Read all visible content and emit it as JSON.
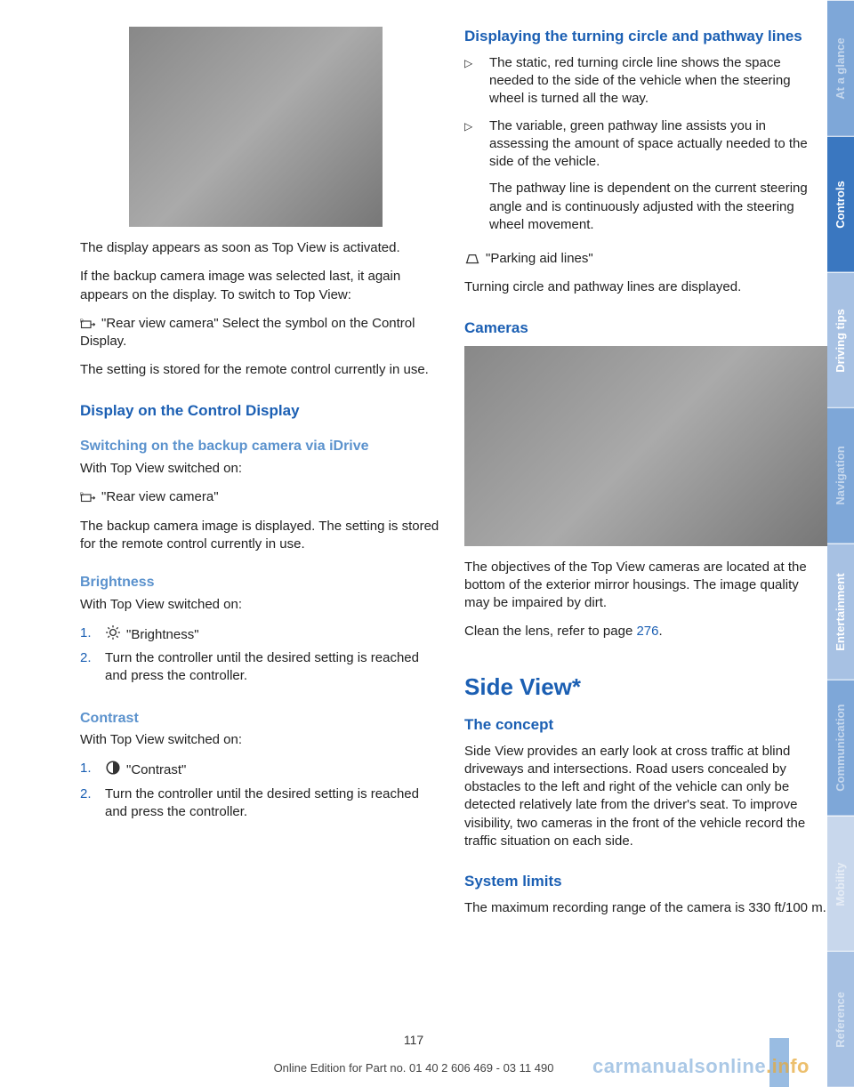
{
  "left": {
    "p1": "The display appears as soon as Top View is ac­tivated.",
    "p2": "If the backup camera image was selected last, it again appears on the display. To switch to Top View:",
    "p3a": "\"Rear view camera\" Select the symbol on the Control Display.",
    "p4": "The setting is stored for the remote control cur­rently in use.",
    "h2_display": "Display on the Control Display",
    "h3_switching": "Switching on the backup camera via iDrive",
    "p5": "With Top View switched on:",
    "p6": "\"Rear view camera\"",
    "p7": "The backup camera image is displayed. The set­ting is stored for the remote control currently in use.",
    "h3_brightness": "Brightness",
    "p8": "With Top View switched on:",
    "ol_bright_1": "\"Brightness\"",
    "ol_bright_2": "Turn the controller until the desired setting is reached and press the controller.",
    "h3_contrast": "Contrast",
    "p9": "With Top View switched on:",
    "ol_contrast_1": "\"Contrast\"",
    "ol_contrast_2": "Turn the controller until the desired setting is reached and press the controller."
  },
  "right": {
    "h2_turning": "Displaying the turning circle and pathway lines",
    "b1": "The static, red turning circle line shows the space needed to the side of the vehicle when the steering wheel is turned all the way.",
    "b2a": "The variable, green pathway line assists you in assessing the amount of space actually needed to the side of the vehicle.",
    "b2b": "The pathway line is dependent on the cur­rent steering angle and is continuously ad­justed with the steering wheel movement.",
    "p_park": "\"Parking aid lines\"",
    "p_turn": "Turning circle and pathway lines are displayed.",
    "h2_cameras": "Cameras",
    "p_cam1": "The objectives of the Top View cameras are lo­cated at the bottom of the exterior mirror hous­ings. The image quality may be impaired by dirt.",
    "p_cam2a": "Clean the lens, refer to page ",
    "p_cam2b": "276",
    "p_cam2c": ".",
    "h1_side": "Side View*",
    "h2_concept": "The concept",
    "p_concept": "Side View provides an early look at cross traffic at blind driveways and intersections. Road users concealed by obstacles to the left and right of the vehicle can only be detected relatively late from the driver's seat. To improve visibility, two cameras in the front of the vehicle record the traffic situation on each side.",
    "h2_limits": "System limits",
    "p_limits": "The maximum recording range of the camera is 330 ft/100 m."
  },
  "nums": {
    "n1": "1.",
    "n2": "2."
  },
  "tabs": {
    "t1": "At a glance",
    "t2": "Controls",
    "t3": "Driving tips",
    "t4": "Navigation",
    "t5": "Entertainment",
    "t6": "Communication",
    "t7": "Mobility",
    "t8": "Reference"
  },
  "footer": {
    "pagenum": "117",
    "line": "Online Edition for Part no. 01 40 2 606 469 - 03 11 490"
  },
  "watermark": {
    "a": "carmanualsonline",
    "b": ".info"
  },
  "icons": {
    "rearcam": "<svg viewBox='0 0 24 16'><rect x='2' y='4' width='14' height='10' fill='none' stroke='#333' stroke-width='1.5'/><text x='0' y='6' font-size='7' fill='#333'>R</text><path d='M16 9 L22 9 M20 7 L22 9 L20 11' fill='none' stroke='#333' stroke-width='1.5'/></svg>",
    "sun": "<svg viewBox='0 0 16 16'><circle cx='8' cy='8' r='3' fill='none' stroke='#333' stroke-width='1.2'/><g stroke='#333' stroke-width='1.2'><line x1='8' y1='1' x2='8' y2='3'/><line x1='8' y1='13' x2='8' y2='15'/><line x1='1' y1='8' x2='3' y2='8'/><line x1='13' y1='8' x2='15' y2='8'/><line x1='3' y1='3' x2='4.5' y2='4.5'/><line x1='11.5' y1='11.5' x2='13' y2='13'/><line x1='3' y1='13' x2='4.5' y2='11.5'/><line x1='11.5' y1='4.5' x2='13' y2='3'/></g></svg>",
    "contrast": "<svg viewBox='0 0 16 16'><circle cx='8' cy='8' r='6' fill='none' stroke='#333' stroke-width='1.4'/><path d='M8 2 A6 6 0 0 1 8 14 Z' fill='#333'/></svg>",
    "parking": "<svg viewBox='0 0 20 16'><path d='M3 14 L6 4 L14 4 L17 14' fill='none' stroke='#333' stroke-width='1.4'/><line x1='2' y1='14' x2='18' y2='14' stroke='#333' stroke-width='1.4'/></svg>"
  }
}
